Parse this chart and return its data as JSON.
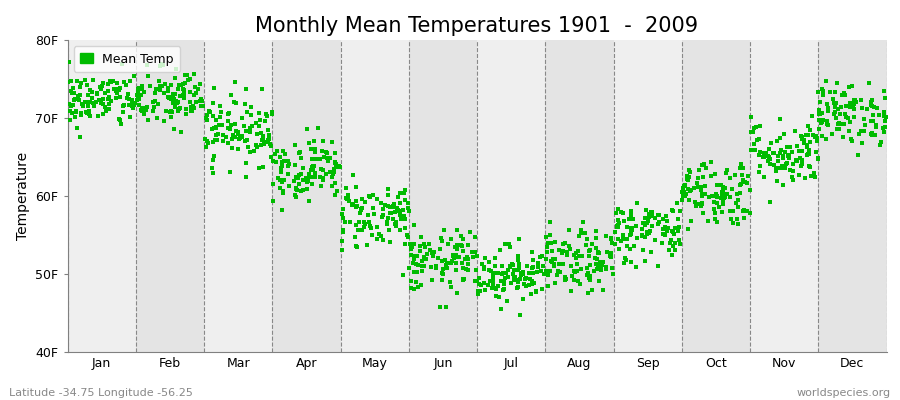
{
  "title": "Monthly Mean Temperatures 1901  -  2009",
  "ylabel": "Temperature",
  "xlabel_months": [
    "Jan",
    "Feb",
    "Mar",
    "Apr",
    "May",
    "Jun",
    "Jul",
    "Aug",
    "Sep",
    "Oct",
    "Nov",
    "Dec"
  ],
  "yticks": [
    40,
    50,
    60,
    70,
    80
  ],
  "ytick_labels": [
    "40F",
    "50F",
    "60F",
    "70F",
    "80F"
  ],
  "ylim": [
    40,
    80
  ],
  "marker_color": "#00BB00",
  "bg_color_light": "#EFEFEF",
  "bg_color_dark": "#E4E4E4",
  "figure_background": "#FFFFFF",
  "legend_label": "Mean Temp",
  "footnote_left": "Latitude -34.75 Longitude -56.25",
  "footnote_right": "worldspecies.org",
  "monthly_mean_F": [
    72.3,
    72.5,
    68.5,
    63.5,
    57.5,
    51.5,
    50.0,
    51.5,
    55.5,
    60.5,
    65.5,
    70.5
  ],
  "monthly_std_F": [
    1.8,
    2.0,
    2.2,
    2.0,
    2.2,
    2.0,
    1.8,
    2.0,
    2.0,
    2.2,
    2.2,
    2.0
  ],
  "n_years": 109,
  "seed": 42,
  "title_fontsize": 15,
  "axis_fontsize": 10,
  "tick_fontsize": 9,
  "footnote_fontsize": 8,
  "legend_fontsize": 9,
  "marker_size": 2.5
}
